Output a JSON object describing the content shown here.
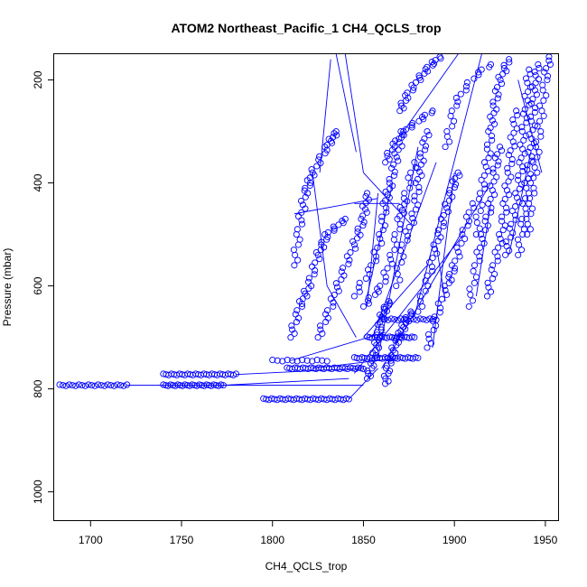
{
  "chart_data": {
    "type": "scatter",
    "title": "ATOM2 Northeast_Pacific_1 CH4_QCLS_trop",
    "xlabel": "CH4_QCLS_trop",
    "ylabel": "Pressure (mbar)",
    "xlim": [
      1680,
      1957
    ],
    "ylim": [
      1055,
      150
    ],
    "y_reversed": true,
    "x_ticks": [
      1700,
      1750,
      1800,
      1850,
      1900,
      1950
    ],
    "y_ticks": [
      200,
      400,
      600,
      800,
      1000
    ],
    "grid": false,
    "marker": "open-circle",
    "series_color": "#0000ff",
    "clusters": [
      {
        "x_start": 1683,
        "x_end": 1720,
        "p": 793,
        "n": 22
      },
      {
        "x_start": 1740,
        "x_end": 1773,
        "p": 793,
        "n": 26
      },
      {
        "x_start": 1740,
        "x_end": 1780,
        "p": 772,
        "n": 28
      },
      {
        "x_start": 1795,
        "x_end": 1842,
        "p": 820,
        "n": 32
      },
      {
        "x_start": 1808,
        "x_end": 1850,
        "p": 760,
        "n": 30
      },
      {
        "x_start": 1800,
        "x_end": 1830,
        "p": 745,
        "n": 12
      },
      {
        "x_start": 1845,
        "x_end": 1880,
        "p": 740,
        "n": 26
      },
      {
        "x_start": 1852,
        "x_end": 1878,
        "p": 700,
        "n": 20
      },
      {
        "x_start": 1860,
        "x_end": 1890,
        "p": 665,
        "n": 18
      }
    ],
    "profiles": [
      {
        "points": [
          [
            1812,
            560
          ],
          [
            1815,
            480
          ],
          [
            1818,
            420
          ],
          [
            1822,
            380
          ],
          [
            1830,
            330
          ],
          [
            1835,
            300
          ]
        ],
        "n": 40
      },
      {
        "points": [
          [
            1810,
            700
          ],
          [
            1815,
            640
          ],
          [
            1820,
            600
          ],
          [
            1825,
            540
          ],
          [
            1830,
            500
          ],
          [
            1840,
            470
          ]
        ],
        "n": 40
      },
      {
        "points": [
          [
            1825,
            700
          ],
          [
            1832,
            640
          ],
          [
            1838,
            580
          ],
          [
            1845,
            520
          ],
          [
            1850,
            470
          ],
          [
            1852,
            420
          ]
        ],
        "n": 40
      },
      {
        "points": [
          [
            1845,
            620
          ],
          [
            1855,
            560
          ],
          [
            1860,
            500
          ],
          [
            1862,
            440
          ],
          [
            1865,
            400
          ],
          [
            1868,
            350
          ],
          [
            1872,
            300
          ]
        ],
        "n": 40
      },
      {
        "points": [
          [
            1850,
            640
          ],
          [
            1860,
            600
          ],
          [
            1866,
            540
          ],
          [
            1870,
            470
          ],
          [
            1873,
            430
          ],
          [
            1878,
            360
          ]
        ],
        "n": 35
      },
      {
        "points": [
          [
            1868,
            600
          ],
          [
            1872,
            520
          ],
          [
            1878,
            460
          ],
          [
            1880,
            400
          ],
          [
            1882,
            350
          ],
          [
            1885,
            300
          ]
        ],
        "n": 35
      },
      {
        "points": [
          [
            1870,
            260
          ],
          [
            1874,
            230
          ],
          [
            1880,
            200
          ],
          [
            1886,
            175
          ],
          [
            1892,
            155
          ]
        ],
        "n": 25
      },
      {
        "points": [
          [
            1880,
            650
          ],
          [
            1886,
            580
          ],
          [
            1890,
            520
          ],
          [
            1894,
            470
          ],
          [
            1898,
            420
          ],
          [
            1902,
            380
          ]
        ],
        "n": 35
      },
      {
        "points": [
          [
            1885,
            720
          ],
          [
            1890,
            660
          ],
          [
            1896,
            600
          ],
          [
            1900,
            560
          ],
          [
            1905,
            500
          ],
          [
            1910,
            440
          ]
        ],
        "n": 35
      },
      {
        "points": [
          [
            1908,
            640
          ],
          [
            1912,
            560
          ],
          [
            1916,
            500
          ],
          [
            1920,
            440
          ],
          [
            1922,
            380
          ],
          [
            1925,
            330
          ]
        ],
        "n": 35
      },
      {
        "points": [
          [
            1912,
            500
          ],
          [
            1915,
            420
          ],
          [
            1918,
            360
          ],
          [
            1920,
            300
          ],
          [
            1922,
            250
          ],
          [
            1925,
            200
          ],
          [
            1930,
            160
          ]
        ],
        "n": 40
      },
      {
        "points": [
          [
            1918,
            620
          ],
          [
            1922,
            560
          ],
          [
            1926,
            500
          ],
          [
            1928,
            440
          ],
          [
            1930,
            380
          ],
          [
            1932,
            320
          ],
          [
            1934,
            260
          ]
        ],
        "n": 40
      },
      {
        "points": [
          [
            1928,
            540
          ],
          [
            1932,
            480
          ],
          [
            1935,
            420
          ],
          [
            1937,
            360
          ],
          [
            1938,
            300
          ],
          [
            1940,
            240
          ],
          [
            1941,
            180
          ]
        ],
        "n": 40
      },
      {
        "points": [
          [
            1935,
            540
          ],
          [
            1938,
            470
          ],
          [
            1940,
            400
          ],
          [
            1942,
            340
          ],
          [
            1943,
            280
          ],
          [
            1944,
            220
          ],
          [
            1946,
            170
          ]
        ],
        "n": 40
      },
      {
        "points": [
          [
            1940,
            500
          ],
          [
            1942,
            440
          ],
          [
            1944,
            380
          ],
          [
            1946,
            320
          ],
          [
            1948,
            260
          ],
          [
            1950,
            200
          ],
          [
            1952,
            155
          ]
        ],
        "n": 35
      },
      {
        "points": [
          [
            1895,
            330
          ],
          [
            1898,
            290
          ],
          [
            1900,
            250
          ],
          [
            1905,
            220
          ],
          [
            1912,
            190
          ],
          [
            1920,
            170
          ]
        ],
        "n": 22
      },
      {
        "points": [
          [
            1862,
            360
          ],
          [
            1866,
            330
          ],
          [
            1872,
            300
          ],
          [
            1880,
            280
          ],
          [
            1888,
            260
          ]
        ],
        "n": 18
      },
      {
        "points": [
          [
            1852,
            780
          ],
          [
            1856,
            740
          ],
          [
            1858,
            700
          ],
          [
            1860,
            660
          ],
          [
            1864,
            630
          ]
        ],
        "n": 30
      },
      {
        "points": [
          [
            1862,
            790
          ],
          [
            1864,
            750
          ],
          [
            1868,
            710
          ],
          [
            1872,
            680
          ],
          [
            1876,
            650
          ]
        ],
        "n": 30
      }
    ],
    "connector_lines": [
      [
        [
          1835,
          150
        ],
        [
          1846,
          340
        ]
      ],
      [
        [
          1840,
          150
        ],
        [
          1850,
          380
        ]
      ],
      [
        [
          1832,
          160
        ],
        [
          1826,
          380
        ]
      ],
      [
        [
          1850,
          380
        ],
        [
          1876,
          480
        ]
      ],
      [
        [
          1858,
          420
        ],
        [
          1852,
          640
        ]
      ],
      [
        [
          1822,
          380
        ],
        [
          1830,
          600
        ]
      ],
      [
        [
          1852,
          620
        ],
        [
          1866,
          400
        ]
      ],
      [
        [
          1872,
          300
        ],
        [
          1902,
          150
        ]
      ],
      [
        [
          1878,
          660
        ],
        [
          1915,
          150
        ]
      ],
      [
        [
          1855,
          700
        ],
        [
          1890,
          360
        ]
      ],
      [
        [
          1858,
          740
        ],
        [
          1880,
          330
        ]
      ],
      [
        [
          1860,
          760
        ],
        [
          1920,
          400
        ]
      ],
      [
        [
          1845,
          770
        ],
        [
          1905,
          500
        ]
      ],
      [
        [
          1720,
          793
        ],
        [
          1850,
          793
        ]
      ],
      [
        [
          1773,
          793
        ],
        [
          1842,
          780
        ]
      ],
      [
        [
          1780,
          772
        ],
        [
          1850,
          760
        ]
      ],
      [
        [
          1842,
          820
        ],
        [
          1858,
          760
        ]
      ],
      [
        [
          1830,
          600
        ],
        [
          1846,
          700
        ]
      ],
      [
        [
          1850,
          700
        ],
        [
          1885,
          560
        ]
      ],
      [
        [
          1890,
          520
        ],
        [
          1895,
          630
        ]
      ],
      [
        [
          1900,
          380
        ],
        [
          1888,
          720
        ]
      ],
      [
        [
          1920,
          440
        ],
        [
          1912,
          620
        ]
      ],
      [
        [
          1935,
          200
        ],
        [
          1948,
          380
        ]
      ],
      [
        [
          1942,
          340
        ],
        [
          1930,
          540
        ]
      ],
      [
        [
          1810,
          745
        ],
        [
          1862,
          690
        ]
      ],
      [
        [
          1822,
          760
        ],
        [
          1870,
          740
        ]
      ],
      [
        [
          1870,
          440
        ],
        [
          1845,
          440
        ]
      ],
      [
        [
          1812,
          460
        ],
        [
          1858,
          430
        ]
      ]
    ]
  }
}
